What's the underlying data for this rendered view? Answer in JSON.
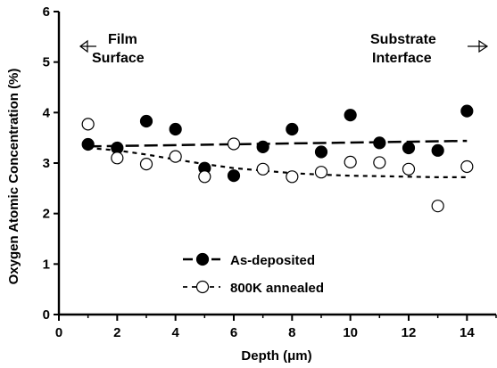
{
  "chart_data": {
    "type": "scatter",
    "xlabel": "Depth (μm)",
    "ylabel": "Oxygen Atomic Concentration (%)",
    "xlim": [
      0,
      15
    ],
    "ylim": [
      0,
      6
    ],
    "xticks": [
      "0",
      "2",
      "4",
      "6",
      "8",
      "10",
      "12",
      "14"
    ],
    "yticks": [
      "0",
      "1",
      "2",
      "3",
      "4",
      "5",
      "6"
    ],
    "grid": false,
    "legend_position": "bottom-center",
    "annotations": {
      "left": [
        "Film",
        "Surface"
      ],
      "right": [
        "Substrate",
        "Interface"
      ]
    },
    "series": [
      {
        "name": "As-deposited",
        "marker": "filled-circle",
        "color": "#000000",
        "x": [
          1,
          2,
          3,
          4,
          5,
          6,
          7,
          8,
          9,
          10,
          11,
          12,
          13,
          14
        ],
        "y": [
          3.37,
          3.3,
          3.83,
          3.67,
          2.9,
          2.75,
          3.32,
          3.67,
          3.22,
          3.95,
          3.4,
          3.3,
          3.25,
          4.03
        ],
        "trend": {
          "style": "long-dash",
          "x": [
            1,
            14
          ],
          "y": [
            3.33,
            3.44
          ]
        }
      },
      {
        "name": "800K annealed",
        "marker": "open-circle",
        "color": "#000000",
        "x": [
          1,
          2,
          3,
          4,
          5,
          6,
          7,
          8,
          9,
          10,
          11,
          12,
          13,
          14
        ],
        "y": [
          3.77,
          3.1,
          2.98,
          3.13,
          2.73,
          3.38,
          2.88,
          2.73,
          2.82,
          3.02,
          3.01,
          2.88,
          2.15,
          2.93
        ],
        "trend": {
          "style": "short-dash",
          "x": [
            1,
            2,
            3,
            4,
            5,
            6,
            7,
            8,
            9,
            10,
            11,
            12,
            13,
            14
          ],
          "y": [
            3.3,
            3.25,
            3.17,
            3.07,
            2.98,
            2.9,
            2.85,
            2.8,
            2.77,
            2.75,
            2.74,
            2.73,
            2.72,
            2.72
          ]
        }
      }
    ]
  }
}
